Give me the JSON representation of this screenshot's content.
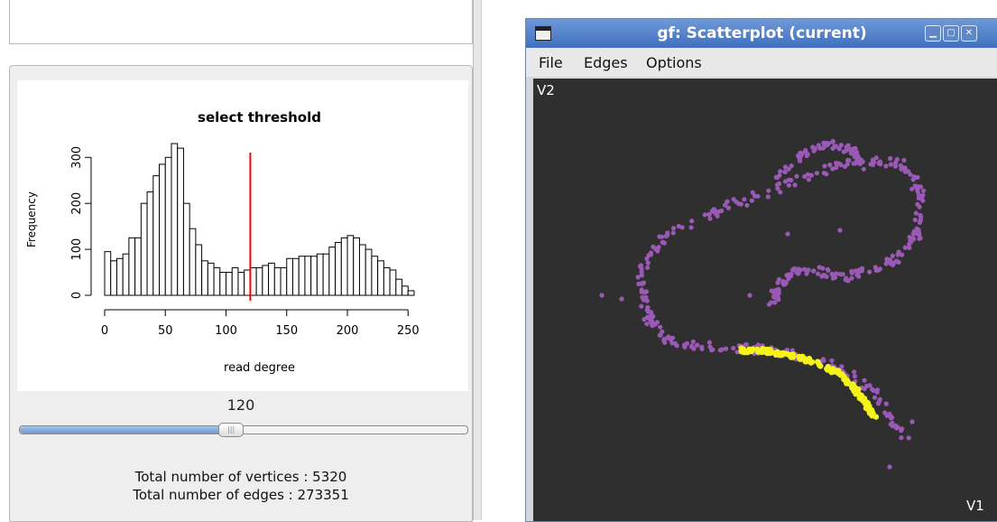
{
  "left_panel": {
    "slider": {
      "value": "120",
      "fraction": 0.47
    },
    "stats": {
      "vertices": "Total number of vertices :  5320",
      "edges": "Total number of edges : 273351"
    }
  },
  "chart_data": {
    "type": "bar",
    "title": "select threshold",
    "xlabel": "read degree",
    "ylabel": "Frequency",
    "xlim": [
      0,
      255
    ],
    "ylim": [
      0,
      330
    ],
    "xticks": [
      0,
      50,
      100,
      150,
      200,
      250
    ],
    "yticks": [
      0,
      100,
      200,
      300
    ],
    "bin_width": 5,
    "bin_starts": [
      0,
      5,
      10,
      15,
      20,
      25,
      30,
      35,
      40,
      45,
      50,
      55,
      60,
      65,
      70,
      75,
      80,
      85,
      90,
      95,
      100,
      105,
      110,
      115,
      120,
      125,
      130,
      135,
      140,
      145,
      150,
      155,
      160,
      165,
      170,
      175,
      180,
      185,
      190,
      195,
      200,
      205,
      210,
      215,
      220,
      225,
      230,
      235,
      240,
      245,
      250
    ],
    "values": [
      95,
      75,
      80,
      90,
      125,
      125,
      200,
      225,
      260,
      285,
      300,
      330,
      320,
      200,
      145,
      110,
      75,
      70,
      60,
      50,
      50,
      60,
      50,
      55,
      60,
      60,
      65,
      70,
      60,
      60,
      80,
      80,
      85,
      85,
      85,
      90,
      90,
      105,
      115,
      125,
      130,
      125,
      110,
      100,
      85,
      75,
      60,
      55,
      35,
      20,
      10
    ],
    "threshold_line": {
      "x": 120,
      "color": "#ff0000"
    }
  },
  "gf_window": {
    "title": "gf: Scatterplot (current)",
    "menus": [
      "File",
      "Edges",
      "Options"
    ],
    "x_label": "V1",
    "y_label": "V2",
    "colors": {
      "background": "#2f2f2f",
      "points": "#9b59b6",
      "highlight": "#f4f41a",
      "titlebar": "#4f7fc8"
    },
    "icons": [
      "window-menu-icon",
      "minimize-icon",
      "maximize-icon",
      "close-icon"
    ]
  }
}
